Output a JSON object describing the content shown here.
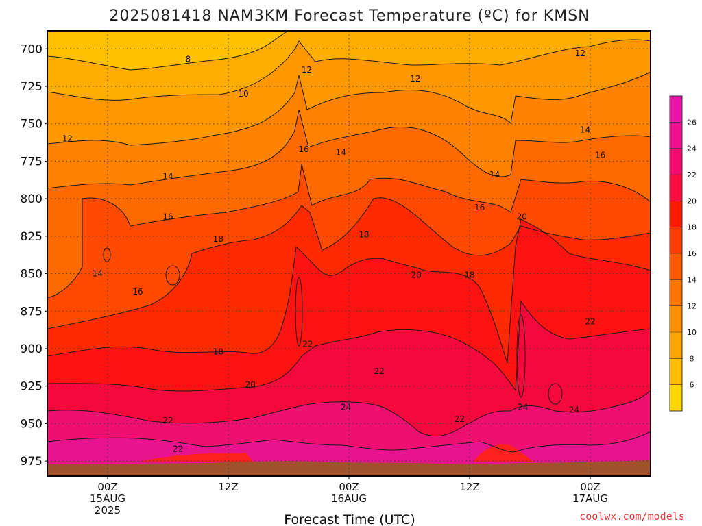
{
  "chart_data": {
    "type": "heatmap",
    "title": "2025081418 NAM3KM Forecast Temperature (ºC) for KMSN",
    "xlabel": "Forecast Time (UTC)",
    "ylabel": "",
    "credit": "coolwx.com/models",
    "y_ticks": [
      "700",
      "725",
      "750",
      "775",
      "800",
      "825",
      "850",
      "875",
      "900",
      "925",
      "950",
      "975"
    ],
    "x_ticks": [
      {
        "hour": 6,
        "lines": [
          "00Z",
          "15AUG",
          "2025"
        ]
      },
      {
        "hour": 18,
        "lines": [
          "12Z"
        ]
      },
      {
        "hour": 30,
        "lines": [
          "00Z",
          "16AUG"
        ]
      },
      {
        "hour": 42,
        "lines": [
          "12Z"
        ]
      },
      {
        "hour": 54,
        "lines": [
          "00Z",
          "17AUG"
        ]
      }
    ],
    "xlim": [
      0,
      60
    ],
    "ylim": [
      688,
      985
    ],
    "colorbar": {
      "labels": [
        "6",
        "8",
        "10",
        "12",
        "14",
        "16",
        "18",
        "20",
        "22",
        "24",
        "26"
      ],
      "colors": [
        "#ffd700",
        "#ffbe00",
        "#ffa500",
        "#ff9000",
        "#ff7500",
        "#ff5a00",
        "#ff3c00",
        "#ff1a00",
        "#ff0d40",
        "#f50a6e",
        "#ee1090",
        "#e815a8"
      ]
    },
    "levels": [
      6,
      8,
      10,
      12,
      14,
      16,
      18,
      20,
      22,
      24,
      26
    ],
    "contour_labels": [
      {
        "value": "8",
        "t": 14,
        "p": 707
      },
      {
        "value": "10",
        "t": 19.5,
        "p": 730
      },
      {
        "value": "12",
        "t": 2,
        "p": 760
      },
      {
        "value": "12",
        "t": 25.8,
        "p": 714
      },
      {
        "value": "12",
        "t": 36.6,
        "p": 720
      },
      {
        "value": "12",
        "t": 53,
        "p": 703
      },
      {
        "value": "14",
        "t": 12,
        "p": 785
      },
      {
        "value": "14",
        "t": 5,
        "p": 850
      },
      {
        "value": "14",
        "t": 29.2,
        "p": 769
      },
      {
        "value": "14",
        "t": 44.5,
        "p": 784
      },
      {
        "value": "14",
        "t": 53.5,
        "p": 754
      },
      {
        "value": "16",
        "t": 12,
        "p": 812
      },
      {
        "value": "16",
        "t": 9,
        "p": 862
      },
      {
        "value": "16",
        "t": 25.5,
        "p": 767
      },
      {
        "value": "16",
        "t": 43,
        "p": 806
      },
      {
        "value": "16",
        "t": 55,
        "p": 771
      },
      {
        "value": "18",
        "t": 17,
        "p": 827
      },
      {
        "value": "18",
        "t": 31.5,
        "p": 824
      },
      {
        "value": "18",
        "t": 17,
        "p": 902
      },
      {
        "value": "18",
        "t": 42,
        "p": 851
      },
      {
        "value": "20",
        "t": 47.2,
        "p": 812
      },
      {
        "value": "20",
        "t": 36.7,
        "p": 851
      },
      {
        "value": "20",
        "t": 20.2,
        "p": 924
      },
      {
        "value": "22",
        "t": 25.9,
        "p": 897
      },
      {
        "value": "22",
        "t": 33,
        "p": 915
      },
      {
        "value": "22",
        "t": 54,
        "p": 882
      },
      {
        "value": "22",
        "t": 12,
        "p": 948
      },
      {
        "value": "22",
        "t": 13,
        "p": 967
      },
      {
        "value": "22",
        "t": 41,
        "p": 947
      },
      {
        "value": "24",
        "t": 29.7,
        "p": 939
      },
      {
        "value": "24",
        "t": 47.3,
        "p": 939
      },
      {
        "value": "24",
        "t": 52.4,
        "p": 941
      }
    ]
  }
}
